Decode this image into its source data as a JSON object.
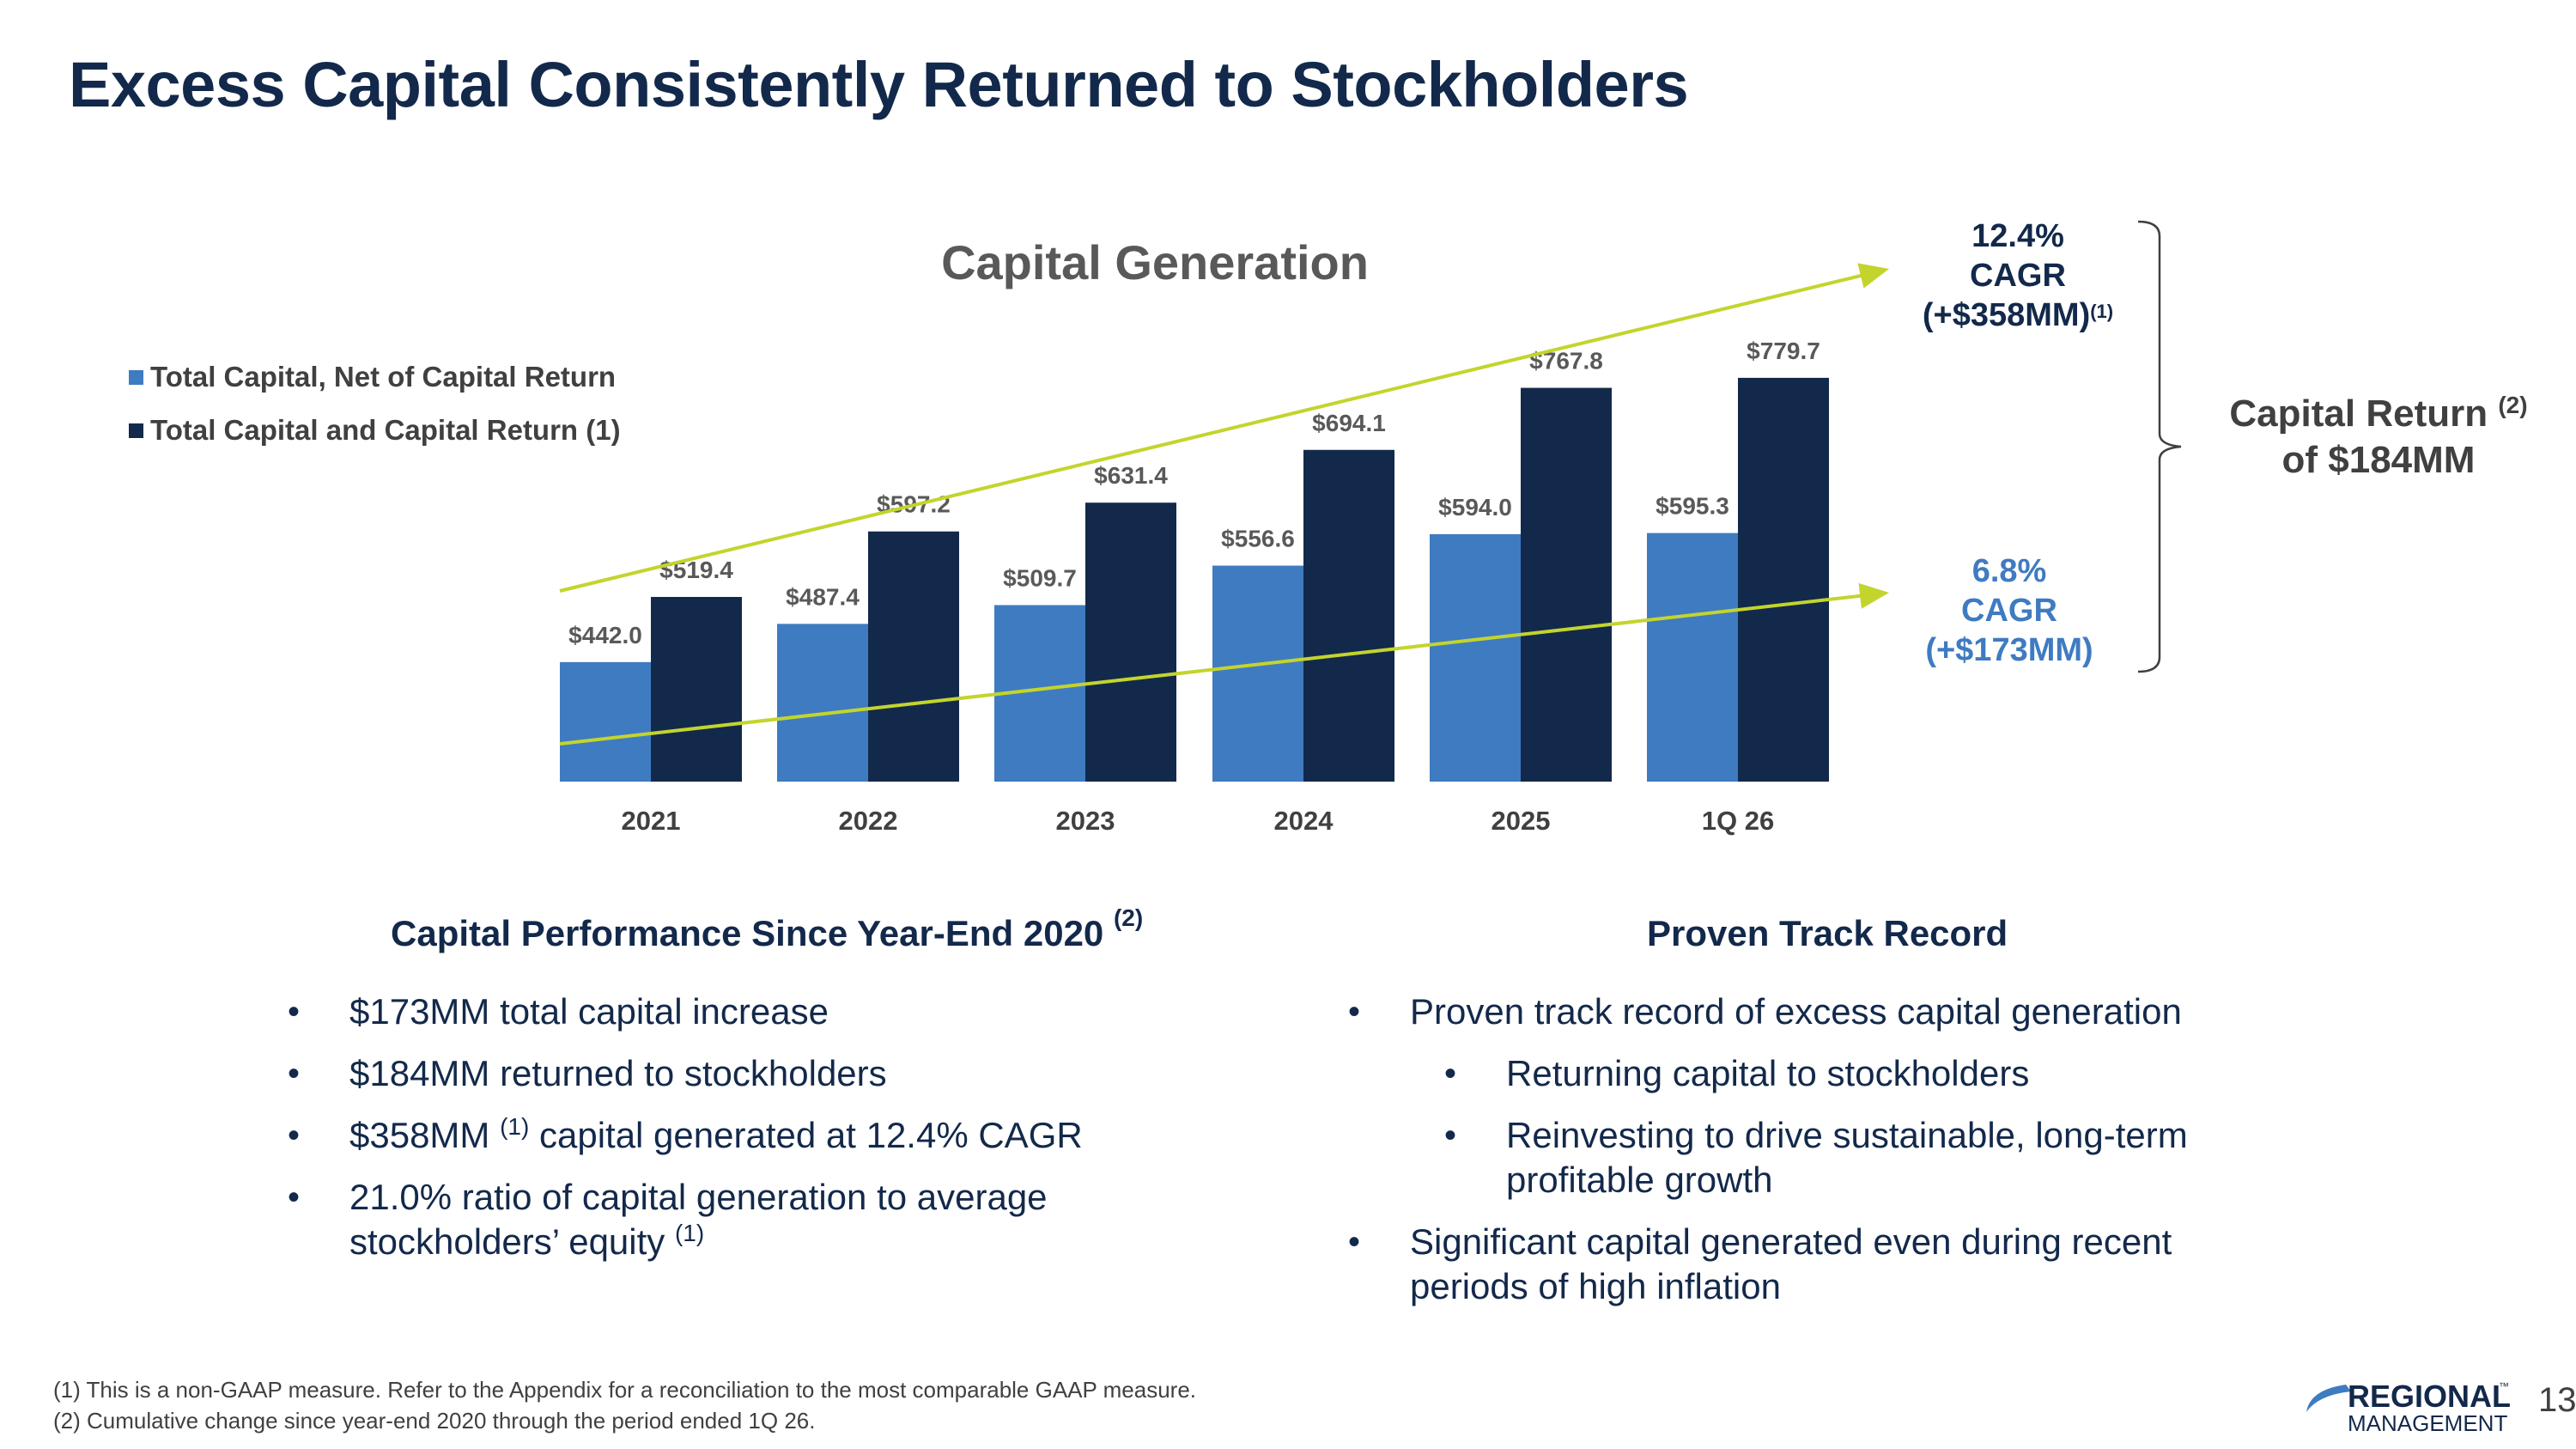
{
  "page": {
    "title": "Excess Capital Consistently Returned to Stockholders",
    "page_number": "13"
  },
  "chart_data": {
    "type": "bar",
    "title": "Capital Generation",
    "categories": [
      "2021",
      "2022",
      "2023",
      "2024",
      "2025",
      "1Q 26"
    ],
    "series": [
      {
        "name": "Total Capital, Net of Capital Return",
        "values": [
          442.0,
          487.4,
          509.7,
          556.6,
          594.0,
          595.3
        ],
        "labels": [
          "$442.0",
          "$487.4",
          "$509.7",
          "$556.6",
          "$594.0",
          "$595.3"
        ],
        "color": "#3f7bc1"
      },
      {
        "name": "Total Capital and Capital Return (1)",
        "values": [
          519.4,
          597.2,
          631.4,
          694.1,
          767.8,
          779.7
        ],
        "labels": [
          "$519.4",
          "$597.2",
          "$631.4",
          "$694.1",
          "$767.8",
          "$779.7"
        ],
        "color": "#13294b"
      }
    ],
    "trend_color": "#c3d42d",
    "grid": false,
    "legend": "top-left"
  },
  "annotations": {
    "cagr_top": {
      "line1": "12.4%",
      "line2": "CAGR",
      "line3": "(+$358MM)",
      "sup": "(1)",
      "color": "#13294b"
    },
    "cagr_bottom": {
      "line1": "6.8%",
      "line2": "CAGR",
      "line3": "(+$173MM)",
      "color": "#3f7bc1"
    },
    "capital_return": {
      "line1": "Capital Return",
      "sup": "(2)",
      "line2": "of $184MM"
    }
  },
  "left_section": {
    "heading": "Capital Performance Since Year-End 2020",
    "heading_sup": "(2)",
    "bullets": [
      {
        "text": "$173MM total capital increase"
      },
      {
        "text": "$184MM returned to stockholders"
      },
      {
        "text_a": "$358MM",
        "sup": "(1)",
        "text_b": "capital generated at 12.4% CAGR"
      },
      {
        "line1": "21.0% ratio of capital generation to average",
        "line2": "stockholders’ equity",
        "sup": "(1)"
      }
    ]
  },
  "right_section": {
    "heading": "Proven Track Record",
    "bullets": [
      {
        "text": "Proven track record of excess capital generation"
      },
      {
        "text": "Returning capital to stockholders"
      },
      {
        "line1": "Reinvesting to drive sustainable, long-term",
        "line2": "profitable growth"
      },
      {
        "line1": "Significant capital generated even during recent",
        "line2": "periods of high inflation"
      }
    ]
  },
  "footnotes": {
    "note1": "(1) This is a non-GAAP measure. Refer to the Appendix for a reconciliation to the most comparable GAAP measure.",
    "note2": "(2) Cumulative change since year-end 2020 through the period ended 1Q 26."
  },
  "logo": {
    "line1": "REGIONAL",
    "line2": "MANAGEMENT",
    "tm": "™",
    "colors": {
      "navy": "#13294b",
      "blue": "#3f7bc1"
    }
  }
}
